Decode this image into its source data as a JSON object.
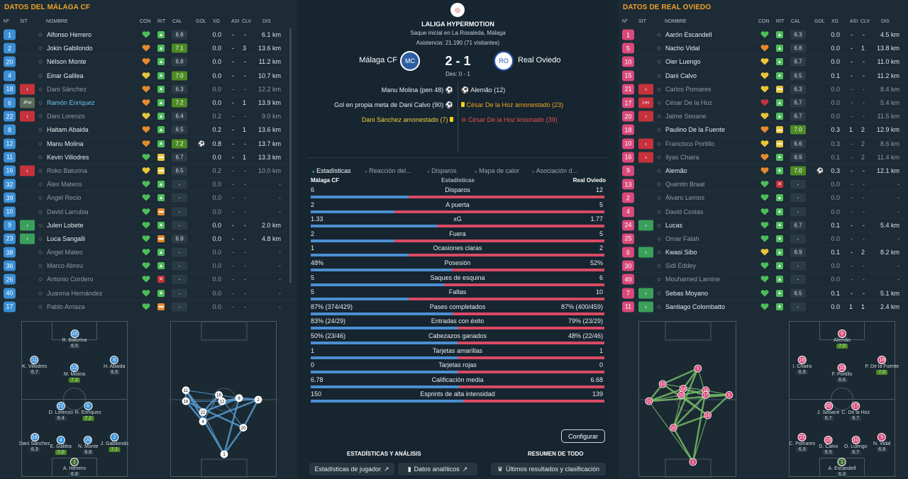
{
  "colors": {
    "accent": "#f0a229",
    "home": "#4a8fd1",
    "away": "#d94a64",
    "good": "#4d8a24",
    "red": "#c6323c"
  },
  "left": {
    "title": "DATOS DEL MÁLAGA CF",
    "headers": [
      "Nº",
      "SIT",
      "NOMBRE",
      "CON",
      "RIT",
      "CAL",
      "GOL",
      "XG",
      "ASI",
      "CLV",
      "DIS"
    ],
    "players": [
      {
        "n": "1",
        "sit": "",
        "name": "Alfonso Herrero",
        "con": "g",
        "rit": "g",
        "cal": "6.8",
        "hi": false,
        "gol": "",
        "xg": "0.0",
        "asi": "-",
        "clv": "-",
        "dis": "6.1 km",
        "dim": false
      },
      {
        "n": "2",
        "sit": "",
        "name": "Jokin Gabilondo",
        "con": "o",
        "rit": "g",
        "cal": "7.1",
        "hi": true,
        "gol": "",
        "xg": "0.0",
        "asi": "-",
        "clv": "3",
        "dis": "13.6 km",
        "dim": false
      },
      {
        "n": "20",
        "sit": "",
        "name": "Nélson Monte",
        "con": "o",
        "rit": "g",
        "cal": "6.8",
        "hi": false,
        "gol": "",
        "xg": "0.0",
        "asi": "-",
        "clv": "-",
        "dis": "11.2 km",
        "dim": false
      },
      {
        "n": "4",
        "sit": "",
        "name": "Einar Galilea",
        "con": "y",
        "rit": "g",
        "cal": "7.0",
        "hi": true,
        "gol": "",
        "xg": "0.0",
        "asi": "-",
        "clv": "-",
        "dis": "10.7 km",
        "dim": false
      },
      {
        "n": "18",
        "sit": "out",
        "name": "Dani Sánchez",
        "con": "o",
        "rit": "g",
        "cal": "6.3",
        "hi": false,
        "gol": "",
        "xg": "0.0",
        "asi": "-",
        "clv": "-",
        "dis": "12.2 km",
        "dim": true
      },
      {
        "n": "6",
        "sit": "JPar",
        "name": "Ramón Enríquez",
        "con": "o",
        "rit": "g",
        "cal": "7.2",
        "hi": true,
        "gol": "",
        "xg": "0.0",
        "asi": "-",
        "clv": "1",
        "dis": "13.9 km",
        "dim": false,
        "blue": true
      },
      {
        "n": "22",
        "sit": "out",
        "name": "Dani Lorenzo",
        "con": "y",
        "rit": "g",
        "cal": "6.4",
        "hi": false,
        "gol": "",
        "xg": "0.2",
        "asi": "-",
        "clv": "-",
        "dis": "9.0 km",
        "dim": true
      },
      {
        "n": "8",
        "sit": "",
        "name": "Haitam Abaida",
        "con": "o",
        "rit": "g",
        "cal": "6.5",
        "hi": false,
        "gol": "",
        "xg": "0.2",
        "asi": "-",
        "clv": "1",
        "dis": "13.6 km",
        "dim": false
      },
      {
        "n": "12",
        "sit": "",
        "name": "Manu Molina",
        "con": "o",
        "rit": "g",
        "cal": "7.2",
        "hi": true,
        "gol": "⚽",
        "xg": "0.8",
        "asi": "-",
        "clv": "-",
        "dis": "13.7 km",
        "dim": false
      },
      {
        "n": "11",
        "sit": "",
        "name": "Kevin Villodres",
        "con": "g",
        "rit": "y",
        "cal": "6.7",
        "hi": false,
        "gol": "",
        "xg": "0.0",
        "asi": "-",
        "clv": "1",
        "dis": "13.3 km",
        "dim": false
      },
      {
        "n": "16",
        "sit": "out",
        "name": "Roko Baturina",
        "con": "y",
        "rit": "y",
        "cal": "6.5",
        "hi": false,
        "gol": "",
        "xg": "0.2",
        "asi": "-",
        "clv": "-",
        "dis": "10.0 km",
        "dim": true
      },
      {
        "n": "32",
        "sit": "",
        "name": "Álex Mateos",
        "con": "g",
        "rit": "g",
        "cal": "-",
        "hi": false,
        "gol": "",
        "xg": "0.0",
        "asi": "-",
        "clv": "-",
        "dis": "-",
        "dim": true
      },
      {
        "n": "39",
        "sit": "",
        "name": "Ángel Recio",
        "con": "g",
        "rit": "g",
        "cal": "-",
        "hi": false,
        "gol": "",
        "xg": "0.0",
        "asi": "-",
        "clv": "-",
        "dis": "-",
        "dim": true
      },
      {
        "n": "10",
        "sit": "",
        "name": "David Larrubia",
        "con": "g",
        "rit": "o",
        "cal": "-",
        "hi": false,
        "gol": "",
        "xg": "0.0",
        "asi": "-",
        "clv": "-",
        "dis": "-",
        "dim": true
      },
      {
        "n": "9",
        "sit": "in",
        "name": "Julen Lobete",
        "con": "g",
        "rit": "g",
        "cal": "-",
        "hi": false,
        "gol": "",
        "xg": "0.0",
        "asi": "-",
        "clv": "-",
        "dis": "2.0 km",
        "dim": false
      },
      {
        "n": "23",
        "sit": "in",
        "name": "Luca Sangalli",
        "con": "g",
        "rit": "o",
        "cal": "6.9",
        "hi": false,
        "gol": "",
        "xg": "0.0",
        "asi": "-",
        "clv": "-",
        "dis": "4.8 km",
        "dim": false
      },
      {
        "n": "38",
        "sit": "",
        "name": "Ángel Mateo",
        "con": "g",
        "rit": "g",
        "cal": "-",
        "hi": false,
        "gol": "",
        "xg": "0.0",
        "asi": "-",
        "clv": "-",
        "dis": "-",
        "dim": true
      },
      {
        "n": "36",
        "sit": "",
        "name": "Marco Abreu",
        "con": "g",
        "rit": "g",
        "cal": "-",
        "hi": false,
        "gol": "",
        "xg": "0.0",
        "asi": "-",
        "clv": "-",
        "dis": "-",
        "dim": true
      },
      {
        "n": "26",
        "sit": "",
        "name": "Antonio Cordero",
        "con": "g",
        "rit": "r",
        "cal": "-",
        "hi": false,
        "gol": "",
        "xg": "0.0",
        "asi": "-",
        "clv": "-",
        "dis": "-",
        "dim": true
      },
      {
        "n": "40",
        "sit": "",
        "name": "Juanma Hernández",
        "con": "g",
        "rit": "g",
        "cal": "-",
        "hi": false,
        "gol": "",
        "xg": "0.0",
        "asi": "-",
        "clv": "-",
        "dis": "-",
        "dim": true
      },
      {
        "n": "17",
        "sit": "",
        "name": "Pablo Arriaza",
        "con": "g",
        "rit": "o",
        "cal": "-",
        "hi": false,
        "gol": "",
        "xg": "0.0",
        "asi": "-",
        "clv": "-",
        "dis": "-",
        "dim": true
      }
    ],
    "formation": [
      {
        "n": "16",
        "name": "R. Baturina",
        "r": "6.5",
        "hi": false
      },
      {
        "n": "11",
        "name": "K. Villodres",
        "r": "6.7",
        "hi": false
      },
      {
        "n": "12",
        "name": "M. Molina",
        "r": "7.2",
        "hi": true
      },
      {
        "n": "8",
        "name": "H. Abaida",
        "r": "6.5",
        "hi": false
      },
      {
        "n": "22",
        "name": "D. Lorenzo",
        "r": "6.4",
        "hi": false
      },
      {
        "n": "6",
        "name": "R. Enríquez",
        "r": "7.2",
        "hi": true
      },
      {
        "n": "18",
        "name": "Dani Sánchez",
        "r": "6.3",
        "hi": false
      },
      {
        "n": "4",
        "name": "E. Galilea",
        "r": "7.0",
        "hi": true
      },
      {
        "n": "20",
        "name": "N. Monte",
        "r": "6.8",
        "hi": false
      },
      {
        "n": "2",
        "name": "J. Gabilondo",
        "r": "7.1",
        "hi": true
      },
      {
        "n": "1",
        "name": "A. Herrero",
        "r": "6.8",
        "hi": false
      }
    ],
    "pass_nodes": [
      "11",
      "18",
      "4",
      "22",
      "16",
      "12",
      "6",
      "2",
      "20",
      "1"
    ]
  },
  "right": {
    "title": "DATOS DE REAL OVIEDO",
    "headers": [
      "Nº",
      "SIT",
      "NOMBRE",
      "CON",
      "RIT",
      "CAL",
      "GOL",
      "XG",
      "ASI",
      "CLV",
      "DIS"
    ],
    "players": [
      {
        "n": "1",
        "sit": "",
        "name": "Aarón Escandell",
        "con": "g",
        "rit": "g",
        "cal": "6.3",
        "hi": false,
        "gol": "",
        "xg": "0.0",
        "asi": "-",
        "clv": "-",
        "dis": "4.5 km",
        "dim": false
      },
      {
        "n": "5",
        "sit": "",
        "name": "Nacho Vidal",
        "con": "o",
        "rit": "g",
        "cal": "6.8",
        "hi": false,
        "gol": "",
        "xg": "0.0",
        "asi": "-",
        "clv": "1",
        "dis": "13.8 km",
        "dim": false
      },
      {
        "n": "10",
        "sit": "",
        "name": "Oier Luengo",
        "con": "y",
        "rit": "g",
        "cal": "6.7",
        "hi": false,
        "gol": "",
        "xg": "0.0",
        "asi": "-",
        "clv": "-",
        "dis": "11.0 km",
        "dim": false
      },
      {
        "n": "15",
        "sit": "",
        "name": "Dani Calvo",
        "con": "y",
        "rit": "g",
        "cal": "6.5",
        "hi": false,
        "gol": "",
        "xg": "0.1",
        "asi": "-",
        "clv": "-",
        "dis": "11.2 km",
        "dim": false
      },
      {
        "n": "21",
        "sit": "out",
        "name": "Carlos Pomares",
        "con": "y",
        "rit": "y",
        "cal": "6.3",
        "hi": false,
        "gol": "",
        "xg": "0.0",
        "asi": "-",
        "clv": "-",
        "dis": "8.4 km",
        "dim": true
      },
      {
        "n": "17",
        "sit": "Les",
        "name": "César De la Hoz",
        "con": "r",
        "rit": "g",
        "cal": "6.7",
        "hi": false,
        "gol": "",
        "xg": "0.0",
        "asi": "-",
        "clv": "-",
        "dis": "5.4 km",
        "dim": true
      },
      {
        "n": "20",
        "sit": "out",
        "name": "Jaime Seoane",
        "con": "y",
        "rit": "g",
        "cal": "6.7",
        "hi": false,
        "gol": "",
        "xg": "0.0",
        "asi": "-",
        "clv": "-",
        "dis": "11.5 km",
        "dim": true
      },
      {
        "n": "18",
        "sit": "",
        "name": "Paulino De la Fuente",
        "con": "o",
        "rit": "y",
        "cal": "7.0",
        "hi": true,
        "gol": "",
        "xg": "0.3",
        "asi": "1",
        "clv": "2",
        "dis": "12.9 km",
        "dim": false
      },
      {
        "n": "10",
        "sit": "out",
        "name": "Francisco Portillo",
        "con": "y",
        "rit": "y",
        "cal": "6.6",
        "hi": false,
        "gol": "",
        "xg": "0.3",
        "asi": "-",
        "clv": "2",
        "dis": "8.6 km",
        "dim": true
      },
      {
        "n": "16",
        "sit": "out",
        "name": "Ilyas Chaira",
        "con": "o",
        "rit": "g",
        "cal": "6.9",
        "hi": false,
        "gol": "",
        "xg": "0.1",
        "asi": "-",
        "clv": "2",
        "dis": "11.4 km",
        "dim": true
      },
      {
        "n": "9",
        "sit": "",
        "name": "Alemão",
        "con": "o",
        "rit": "g",
        "cal": "7.0",
        "hi": true,
        "gol": "⚽",
        "xg": "0.3",
        "asi": "-",
        "clv": "-",
        "dis": "12.1 km",
        "dim": false
      },
      {
        "n": "13",
        "sit": "",
        "name": "Quentin Braat",
        "con": "g",
        "rit": "r",
        "cal": "-",
        "hi": false,
        "gol": "",
        "xg": "0.0",
        "asi": "-",
        "clv": "-",
        "dis": "-",
        "dim": true
      },
      {
        "n": "2",
        "sit": "",
        "name": "Álvaro Lemos",
        "con": "g",
        "rit": "g",
        "cal": "-",
        "hi": false,
        "gol": "",
        "xg": "0.0",
        "asi": "-",
        "clv": "-",
        "dis": "-",
        "dim": true
      },
      {
        "n": "4",
        "sit": "",
        "name": "David Costas",
        "con": "g",
        "rit": "g",
        "cal": "-",
        "hi": false,
        "gol": "",
        "xg": "0.0",
        "asi": "-",
        "clv": "-",
        "dis": "-",
        "dim": true
      },
      {
        "n": "24",
        "sit": "in",
        "name": "Lucas",
        "con": "g",
        "rit": "g",
        "cal": "6.7",
        "hi": false,
        "gol": "",
        "xg": "0.1",
        "asi": "-",
        "clv": "-",
        "dis": "5.4 km",
        "dim": false
      },
      {
        "n": "25",
        "sit": "",
        "name": "Omar Falah",
        "con": "g",
        "rit": "g",
        "cal": "-",
        "hi": false,
        "gol": "",
        "xg": "0.0",
        "asi": "-",
        "clv": "-",
        "dis": "-",
        "dim": true
      },
      {
        "n": "6",
        "sit": "in",
        "name": "Kwasi Sibo",
        "con": "y",
        "rit": "g",
        "cal": "6.9",
        "hi": false,
        "gol": "",
        "xg": "0.1",
        "asi": "-",
        "clv": "2",
        "dis": "8.2 km",
        "dim": false
      },
      {
        "n": "30",
        "sit": "",
        "name": "Sidi Eddey",
        "con": "g",
        "rit": "g",
        "cal": "-",
        "hi": false,
        "gol": "",
        "xg": "0.0",
        "asi": "-",
        "clv": "-",
        "dis": "-",
        "dim": true
      },
      {
        "n": "40",
        "sit": "",
        "name": "Mouhamed Lamine",
        "con": "g",
        "rit": "g",
        "cal": "-",
        "hi": false,
        "gol": "",
        "xg": "0.0",
        "asi": "-",
        "clv": "-",
        "dis": "-",
        "dim": true
      },
      {
        "n": "7",
        "sit": "in",
        "name": "Sebas Moyano",
        "con": "g",
        "rit": "g",
        "cal": "6.5",
        "hi": false,
        "gol": "",
        "xg": "0.1",
        "asi": "-",
        "clv": "-",
        "dis": "5.1 km",
        "dim": false
      },
      {
        "n": "11",
        "sit": "in",
        "name": "Santiago Colombatto",
        "con": "g",
        "rit": "g",
        "cal": "-",
        "hi": false,
        "gol": "",
        "xg": "0.0",
        "asi": "1",
        "clv": "1",
        "dis": "2.4 km",
        "dim": false
      }
    ],
    "formation": [
      {
        "n": "9",
        "name": "Alemão",
        "r": "7.0",
        "hi": true
      },
      {
        "n": "16",
        "name": "I. Chaira",
        "r": "6.9",
        "hi": false
      },
      {
        "n": "10",
        "name": "F. Portillo",
        "r": "6.6",
        "hi": false
      },
      {
        "n": "18",
        "name": "P. De la Fuente",
        "r": "7.0",
        "hi": true
      },
      {
        "n": "20",
        "name": "J. Seoane",
        "r": "6.7",
        "hi": false
      },
      {
        "n": "17",
        "name": "C. De la Hoz",
        "r": "6.7",
        "hi": false
      },
      {
        "n": "21",
        "name": "C. Pomares",
        "r": "6.3",
        "hi": false
      },
      {
        "n": "15",
        "name": "D. Calvo",
        "r": "6.5",
        "hi": false
      },
      {
        "n": "10",
        "name": "O. Luengo",
        "r": "6.7",
        "hi": false
      },
      {
        "n": "5",
        "name": "N. Vidal",
        "r": "6.8",
        "hi": false
      },
      {
        "n": "1",
        "name": "A. Escandell",
        "r": "6.3",
        "hi": false
      }
    ],
    "pass_nodes": [
      "9",
      "10",
      "21",
      "18",
      "20",
      "16",
      "17",
      "5",
      "15",
      "15",
      "1"
    ]
  },
  "match": {
    "competition": "LALIGA HYPERMOTION",
    "kickoff": "Saque inicial en La Rosaleda, Málaga",
    "attendance": "Asistencia: 21.190 (71 visitantes)",
    "home": "Málaga CF",
    "away": "Real Oviedo",
    "score": "2 - 1",
    "ht": "Des: 0 - 1",
    "home_events": [
      {
        "text": "Manu Molina (pen 48)",
        "icon": "⚽",
        "color": "#e8edf0"
      },
      {
        "text": "Gol en propia meta de Dani Calvo (90)",
        "icon": "⚽",
        "color": "#e8edf0"
      },
      {
        "text": "Dani Sánchez amonestado (7)",
        "icon": "yellow",
        "color": "#f0d040"
      }
    ],
    "away_events": [
      {
        "text": "Alemão (12)",
        "icon": "⚽",
        "color": "#e8edf0"
      },
      {
        "text": "César De la Hoz amonestado (23)",
        "icon": "yellow",
        "color": "#f0a229"
      },
      {
        "text": "César De la Hoz lesionado (39)",
        "icon": "injury",
        "color": "#e65050"
      }
    ]
  },
  "tabs": [
    "Estadísticas",
    "Reacción del...",
    "Disparos",
    "Mapa de calor",
    "Asociación d..."
  ],
  "stats_header": {
    "home": "Málaga CF",
    "title": "Estadísticas",
    "away": "Real Oviedo"
  },
  "stats": [
    {
      "label": "Disparos",
      "h": "6",
      "a": "12",
      "hv": 6,
      "av": 12
    },
    {
      "label": "A puerta",
      "h": "2",
      "a": "5",
      "hv": 2,
      "av": 5
    },
    {
      "label": "xG",
      "h": "1.33",
      "a": "1.77",
      "hv": 1.33,
      "av": 1.77
    },
    {
      "label": "Fuera",
      "h": "2",
      "a": "5",
      "hv": 2,
      "av": 5
    },
    {
      "label": "Ocasiones claras",
      "h": "1",
      "a": "2",
      "hv": 1,
      "av": 2
    },
    {
      "label": "Posesión",
      "h": "48%",
      "a": "52%",
      "hv": 48,
      "av": 52
    },
    {
      "label": "Saques de esquina",
      "h": "5",
      "a": "6",
      "hv": 5,
      "av": 6
    },
    {
      "label": "Faltas",
      "h": "5",
      "a": "10",
      "hv": 5,
      "av": 10
    },
    {
      "label": "Pases completados",
      "h": "87% (374/429)",
      "a": "87% (400/459)",
      "hv": 429,
      "av": 459
    },
    {
      "label": "Entradas con éxito",
      "h": "83% (24/29)",
      "a": "79% (23/29)",
      "hv": 29,
      "av": 29
    },
    {
      "label": "Cabezazos ganados",
      "h": "50% (23/46)",
      "a": "48% (22/46)",
      "hv": 46,
      "av": 46
    },
    {
      "label": "Tarjetas amarillas",
      "h": "1",
      "a": "1",
      "hv": 1,
      "av": 1
    },
    {
      "label": "Tarjetas rojas",
      "h": "0",
      "a": "0",
      "hv": 0,
      "av": 0
    },
    {
      "label": "Calificación media",
      "h": "6.78",
      "a": "6.68",
      "hv": 6.78,
      "av": 6.68
    },
    {
      "label": "Esprints de alta intensidad",
      "h": "150",
      "a": "139",
      "hv": 150,
      "av": 139
    }
  ],
  "configure": "Configurar",
  "bottom": {
    "analysis": "ESTADÍSTICAS Y ANÁLISIS",
    "summary": "RESUMEN DE TODO",
    "player_stats": "Estadísticas de jugador",
    "analytics": "Datos analíticos",
    "results": "Últimos resultados y clasificación"
  }
}
